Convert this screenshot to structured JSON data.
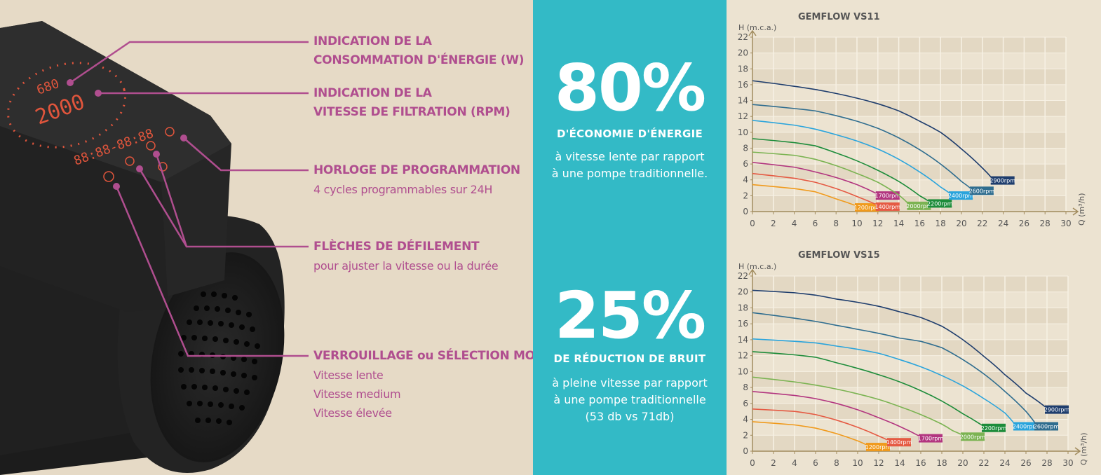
{
  "callouts": [
    {
      "title": "INDICATION DE LA\nCONSOMMATION D'ÉNERGIE (W)",
      "lines": []
    },
    {
      "title": "INDICATION DE LA\nVITESSE DE FILTRATION (RPM)",
      "lines": []
    },
    {
      "title": "HORLOGE DE PROGRAMMATION",
      "lines": [
        "4 cycles programmables sur 24H"
      ]
    },
    {
      "title": "FLÈCHES DE DÉFILEMENT",
      "lines": [
        "pour ajuster la vitesse ou la durée"
      ]
    },
    {
      "title": "VERROUILLAGE ou SÉLECTION MODE",
      "lines": [
        "Vitesse lente",
        "Vitesse medium",
        "Vitesse élevée"
      ]
    }
  ],
  "display": {
    "power": "680",
    "rpm": "2000",
    "clock": "88:88-88:88"
  },
  "stats": [
    {
      "big": "80%",
      "label": "D'ÉCONOMIE D'ÉNERGIE",
      "text": [
        "à vitesse lente par rapport",
        "à une pompe traditionnelle."
      ]
    },
    {
      "big": "25%",
      "label": "DE RÉDUCTION DE BRUIT",
      "text": [
        "à pleine vitesse par rapport",
        "à une pompe traditionnelle",
        "(53 db vs 71db)"
      ]
    }
  ],
  "colors": {
    "teal": "#33bac6",
    "magenta": "#b04e8f",
    "chart_bg": "#ece3d1"
  },
  "chart_data": [
    {
      "type": "line",
      "title": "GEMFLOW VS11",
      "xlabel": "Q (m³/h)",
      "ylabel": "H (m.c.a.)",
      "xlim": [
        0,
        30
      ],
      "ylim": [
        0,
        22
      ],
      "xticks": [
        0,
        2,
        4,
        6,
        8,
        10,
        12,
        14,
        16,
        18,
        20,
        22,
        24,
        26,
        28,
        30
      ],
      "yticks": [
        0,
        2,
        4,
        6,
        8,
        10,
        12,
        14,
        16,
        18,
        20,
        22
      ],
      "series": [
        {
          "name": "1200rpm",
          "color": "#f09a1c",
          "x": [
            0,
            4,
            6,
            8,
            10
          ],
          "y": [
            3.4,
            2.9,
            2.5,
            1.6,
            0.7
          ]
        },
        {
          "name": "1400rpm",
          "color": "#e55a43",
          "x": [
            0,
            4,
            6,
            8,
            10,
            12
          ],
          "y": [
            4.8,
            4.2,
            3.7,
            2.9,
            1.9,
            0.8
          ]
        },
        {
          "name": "1700rpm",
          "color": "#b2357f",
          "x": [
            0,
            4,
            6,
            8,
            10,
            12
          ],
          "y": [
            6.2,
            5.6,
            5.0,
            4.3,
            3.4,
            2.2
          ]
        },
        {
          "name": "2000rpm",
          "color": "#7bb352",
          "x": [
            0,
            4,
            6,
            8,
            10,
            12,
            14,
            15
          ],
          "y": [
            7.5,
            7.1,
            6.6,
            5.8,
            4.8,
            3.7,
            2.1,
            0.9
          ]
        },
        {
          "name": "2200rpm",
          "color": "#1d8c3a",
          "x": [
            0,
            4,
            6,
            8,
            10,
            12,
            14,
            16,
            17
          ],
          "y": [
            9.2,
            8.7,
            8.3,
            7.4,
            6.4,
            5.2,
            3.8,
            2.0,
            1.2
          ]
        },
        {
          "name": "2400rpm",
          "color": "#2aa4dc",
          "x": [
            0,
            4,
            6,
            8,
            10,
            12,
            14,
            16,
            18,
            19
          ],
          "y": [
            11.5,
            10.9,
            10.4,
            9.7,
            8.9,
            7.9,
            6.6,
            5.0,
            3.1,
            2.2
          ]
        },
        {
          "name": "2600rpm",
          "color": "#2f6d8f",
          "x": [
            0,
            4,
            6,
            8,
            10,
            12,
            14,
            16,
            18,
            20,
            21
          ],
          "y": [
            13.5,
            13.0,
            12.7,
            12.1,
            11.4,
            10.5,
            9.3,
            7.8,
            6.0,
            3.8,
            2.8
          ]
        },
        {
          "name": "2900rpm",
          "color": "#1e3d6d",
          "x": [
            0,
            4,
            6,
            8,
            10,
            12,
            14,
            16,
            18,
            20,
            22,
            23
          ],
          "y": [
            16.5,
            15.8,
            15.4,
            14.9,
            14.3,
            13.6,
            12.7,
            11.4,
            10.0,
            7.9,
            5.5,
            4.1
          ]
        }
      ]
    },
    {
      "type": "line",
      "title": "GEMFLOW VS15",
      "xlabel": "Q (m³/h)",
      "ylabel": "H (m.c.a.)",
      "xlim": [
        0,
        30
      ],
      "ylim": [
        0,
        22
      ],
      "xticks": [
        0,
        2,
        4,
        6,
        8,
        10,
        12,
        14,
        16,
        18,
        20,
        22,
        24,
        26,
        28,
        30
      ],
      "yticks": [
        0,
        2,
        4,
        6,
        8,
        10,
        12,
        14,
        16,
        18,
        20,
        22
      ],
      "series": [
        {
          "name": "1200rpm",
          "color": "#f09a1c",
          "x": [
            0,
            4,
            6,
            8,
            10,
            11
          ],
          "y": [
            3.7,
            3.3,
            2.9,
            2.2,
            1.3,
            0.7
          ]
        },
        {
          "name": "1400rpm",
          "color": "#e55a43",
          "x": [
            0,
            4,
            6,
            8,
            10,
            12,
            13
          ],
          "y": [
            5.3,
            5.0,
            4.6,
            3.9,
            3.0,
            1.9,
            1.3
          ]
        },
        {
          "name": "1700rpm",
          "color": "#b2357f",
          "x": [
            0,
            4,
            6,
            8,
            10,
            12,
            14,
            16
          ],
          "y": [
            7.5,
            7.0,
            6.6,
            6.0,
            5.2,
            4.2,
            3.1,
            1.8
          ]
        },
        {
          "name": "2000rpm",
          "color": "#7bb352",
          "x": [
            0,
            4,
            6,
            8,
            10,
            12,
            14,
            16,
            18,
            19,
            20
          ],
          "y": [
            9.3,
            8.7,
            8.3,
            7.8,
            7.2,
            6.5,
            5.6,
            4.6,
            3.4,
            2.6,
            2.0
          ]
        },
        {
          "name": "2200rpm",
          "color": "#1d8c3a",
          "x": [
            0,
            4,
            6,
            8,
            10,
            12,
            14,
            16,
            18,
            20,
            22
          ],
          "y": [
            12.5,
            12.1,
            11.8,
            11.1,
            10.4,
            9.6,
            8.7,
            7.6,
            6.3,
            4.7,
            3.1
          ]
        },
        {
          "name": "2400rpm",
          "color": "#2aa4dc",
          "x": [
            0,
            4,
            6,
            8,
            10,
            12,
            14,
            16,
            18,
            20,
            22,
            24,
            25
          ],
          "y": [
            14.1,
            13.8,
            13.6,
            13.2,
            12.8,
            12.3,
            11.5,
            10.6,
            9.5,
            8.2,
            6.6,
            4.8,
            3.3
          ]
        },
        {
          "name": "2600rpm",
          "color": "#2f6d8f",
          "x": [
            0,
            4,
            6,
            8,
            10,
            12,
            14,
            16,
            18,
            20,
            22,
            24,
            26,
            27
          ],
          "y": [
            17.4,
            16.7,
            16.3,
            15.8,
            15.3,
            14.8,
            14.2,
            13.8,
            13.0,
            11.5,
            9.7,
            7.5,
            5.0,
            3.3
          ]
        },
        {
          "name": "2900rpm",
          "color": "#1e3d6d",
          "x": [
            0,
            4,
            6,
            8,
            10,
            12,
            14,
            16,
            18,
            20,
            22,
            24,
            26,
            28
          ],
          "y": [
            20.2,
            19.9,
            19.6,
            19.1,
            18.7,
            18.2,
            17.5,
            16.8,
            15.7,
            14.0,
            11.9,
            9.6,
            7.3,
            5.4
          ]
        }
      ]
    }
  ]
}
